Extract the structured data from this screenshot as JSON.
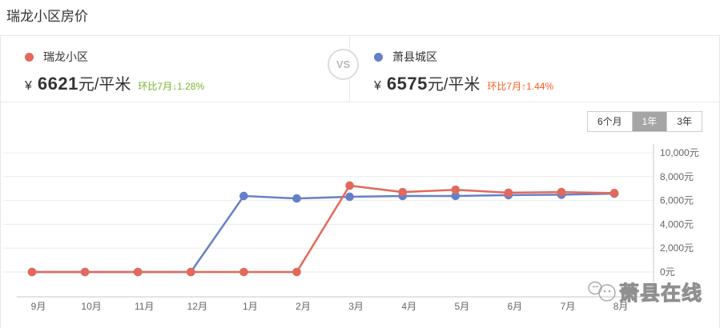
{
  "page": {
    "title": "瑞龙小区房价"
  },
  "colors": {
    "accent_red": "#e2695b",
    "accent_blue": "#6680c8",
    "down_green": "#78b42c",
    "up_orange": "#ff5a25",
    "tab_selected_bg": "#a5a5a5",
    "axis_text": "#666666",
    "grid_line": "#ebebeb",
    "axis_line": "#c9c9c9"
  },
  "compare": {
    "vs_label": "VS",
    "left": {
      "name": "瑞龙小区",
      "currency": "¥",
      "price": "6621",
      "unit": "元/平米",
      "change": "环比7月↓1.28%",
      "change_direction": "down",
      "dot_color": "#e2695b",
      "change_color": "#78b42c"
    },
    "right": {
      "name": "萧县城区",
      "currency": "¥",
      "price": "6575",
      "unit": "元/平米",
      "change": "环比7月↑1.44%",
      "change_direction": "up",
      "dot_color": "#6680c8",
      "change_color": "#ff5a25"
    }
  },
  "range_tabs": [
    {
      "label": "6个月",
      "selected": false
    },
    {
      "label": "1年",
      "selected": true
    },
    {
      "label": "3年",
      "selected": false
    }
  ],
  "watermark": {
    "text": "萧县在线"
  },
  "chart_data": {
    "type": "line",
    "categories": [
      "9月",
      "10月",
      "11月",
      "12月",
      "1月",
      "2月",
      "3月",
      "4月",
      "5月",
      "6月",
      "7月",
      "8月"
    ],
    "series": [
      {
        "name": "瑞龙小区",
        "color": "#e2695b",
        "values": [
          0,
          0,
          0,
          0,
          0,
          0,
          7250,
          6700,
          6900,
          6650,
          6707,
          6621
        ]
      },
      {
        "name": "萧县城区",
        "color": "#6680c8",
        "values": [
          0,
          0,
          0,
          0,
          6380,
          6170,
          6310,
          6380,
          6380,
          6450,
          6482,
          6575
        ]
      }
    ],
    "title": "",
    "xlabel": "",
    "ylabel": "",
    "ylim": [
      0,
      10000
    ],
    "yticks": [
      0,
      2000,
      4000,
      6000,
      8000,
      10000
    ],
    "ytick_labels": [
      "0元",
      "2,000元",
      "4,000元",
      "6,000元",
      "8,000元",
      "10,000元"
    ],
    "grid": true,
    "legend_position": "none",
    "y_axis_side": "right"
  }
}
